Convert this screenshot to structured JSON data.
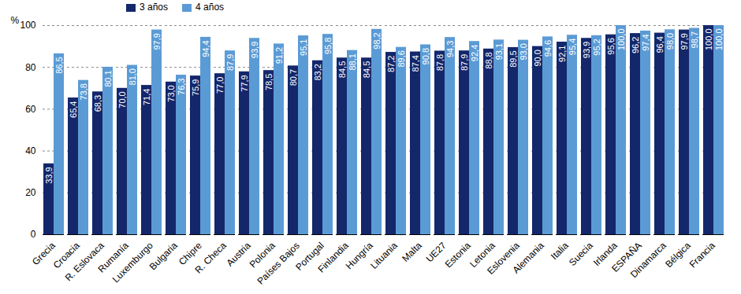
{
  "chart_data": {
    "type": "bar",
    "categories": [
      "Grecia",
      "Croacia",
      "R. Eslovaca",
      "Rumanía",
      "Luxemburgo",
      "Bulgaria",
      "Chipre",
      "R. Checa",
      "Austria",
      "Polonia",
      "Países Bajos",
      "Portugal",
      "Finlandia",
      "Hungría",
      "Lituania",
      "Malta",
      "UE27",
      "Estonia",
      "Letonia",
      "Eslovenia",
      "Alemania",
      "Italia",
      "Suecia",
      "Irlanda",
      "ESPAÑA",
      "Dinamarca",
      "Bélgica",
      "Francia"
    ],
    "series": [
      {
        "name": "3 años",
        "color": "#14276b",
        "values": [
          33.9,
          65.4,
          68.3,
          70.0,
          71.4,
          73.0,
          75.9,
          77.0,
          77.9,
          78.5,
          80.7,
          83.2,
          84.5,
          84.5,
          87.2,
          87.4,
          87.8,
          87.9,
          88.8,
          89.5,
          90.0,
          92.1,
          93.9,
          95.6,
          96.2,
          96.4,
          97.9,
          100.0
        ],
        "value_labels": [
          "33,9",
          "65,4",
          "68,3",
          "70,0",
          "71,4",
          "73,0",
          "75,9",
          "77,0",
          "77,9",
          "78,5",
          "80,7",
          "83,2",
          "84,5",
          "84,5",
          "87,2",
          "87,4",
          "87,8",
          "87,9",
          "88,8",
          "89,5",
          "90,0",
          "92,1",
          "93,9",
          "95,6",
          "96,2",
          "96,4",
          "97,9",
          "100,0"
        ]
      },
      {
        "name": "4 años",
        "color": "#5b9bd5",
        "values": [
          86.5,
          73.8,
          80.1,
          81.0,
          97.9,
          76.3,
          94.4,
          87.9,
          93.9,
          91.2,
          95.1,
          95.8,
          88.1,
          98.2,
          89.6,
          90.8,
          94.3,
          92.4,
          93.1,
          93.0,
          94.6,
          95.4,
          95.2,
          100.0,
          97.4,
          98.0,
          98.7,
          100.0
        ],
        "value_labels": [
          "86,5",
          "73,8",
          "80,1",
          "81,0",
          "97,9",
          "76,3",
          "94,4",
          "87,9",
          "93,9",
          "91,2",
          "95,1",
          "95,8",
          "88,1",
          "98,2",
          "89,6",
          "90,8",
          "94,3",
          "92,4",
          "93,1",
          "93,0",
          "94,6",
          "95,4",
          "95,2",
          "100,0",
          "97,4",
          "98,0",
          "98,7",
          "100,0"
        ]
      }
    ],
    "y_label": "%",
    "ylim": [
      0,
      100
    ],
    "yticks": [
      0,
      20,
      40,
      60,
      80,
      100
    ],
    "grid": true,
    "legend": "top-left",
    "data_labels": true
  }
}
